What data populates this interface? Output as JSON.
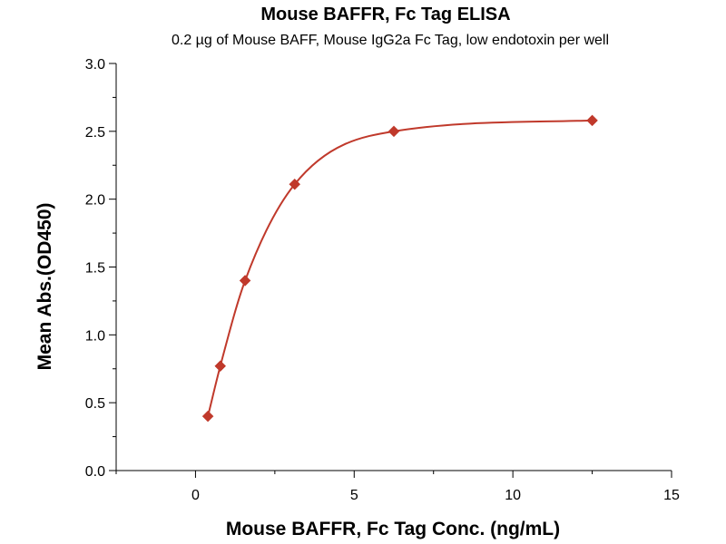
{
  "chart_data": {
    "type": "scatter",
    "title": "Mouse BAFFR, Fc Tag ELISA",
    "subtitle": "0.2 µg of Mouse BAFF, Mouse IgG2a Fc Tag, low endotoxin per well",
    "xlabel": "Mouse BAFFR, Fc Tag Conc. (ng/mL)",
    "ylabel": "Mean Abs.(OD450)",
    "xlim": [
      -2.5,
      15
    ],
    "ylim": [
      0,
      3.0
    ],
    "x_ticks": [
      0,
      5,
      10,
      15
    ],
    "x_tick_labels": [
      "0",
      "5",
      "10",
      "15"
    ],
    "y_ticks": [
      0.0,
      0.5,
      1.0,
      1.5,
      2.0,
      2.5,
      3.0
    ],
    "y_tick_labels": [
      "0.0",
      "0.5",
      "1.0",
      "1.5",
      "2.0",
      "2.5",
      "3.0"
    ],
    "grid": false,
    "legend": "none",
    "marker": "diamond",
    "fit_line": true,
    "color": "#c0392b",
    "series": [
      {
        "x": [
          0.391,
          0.781,
          1.563,
          3.125,
          6.25,
          12.5
        ],
        "y": [
          0.4,
          0.77,
          1.4,
          2.11,
          2.5,
          2.58
        ]
      }
    ]
  }
}
